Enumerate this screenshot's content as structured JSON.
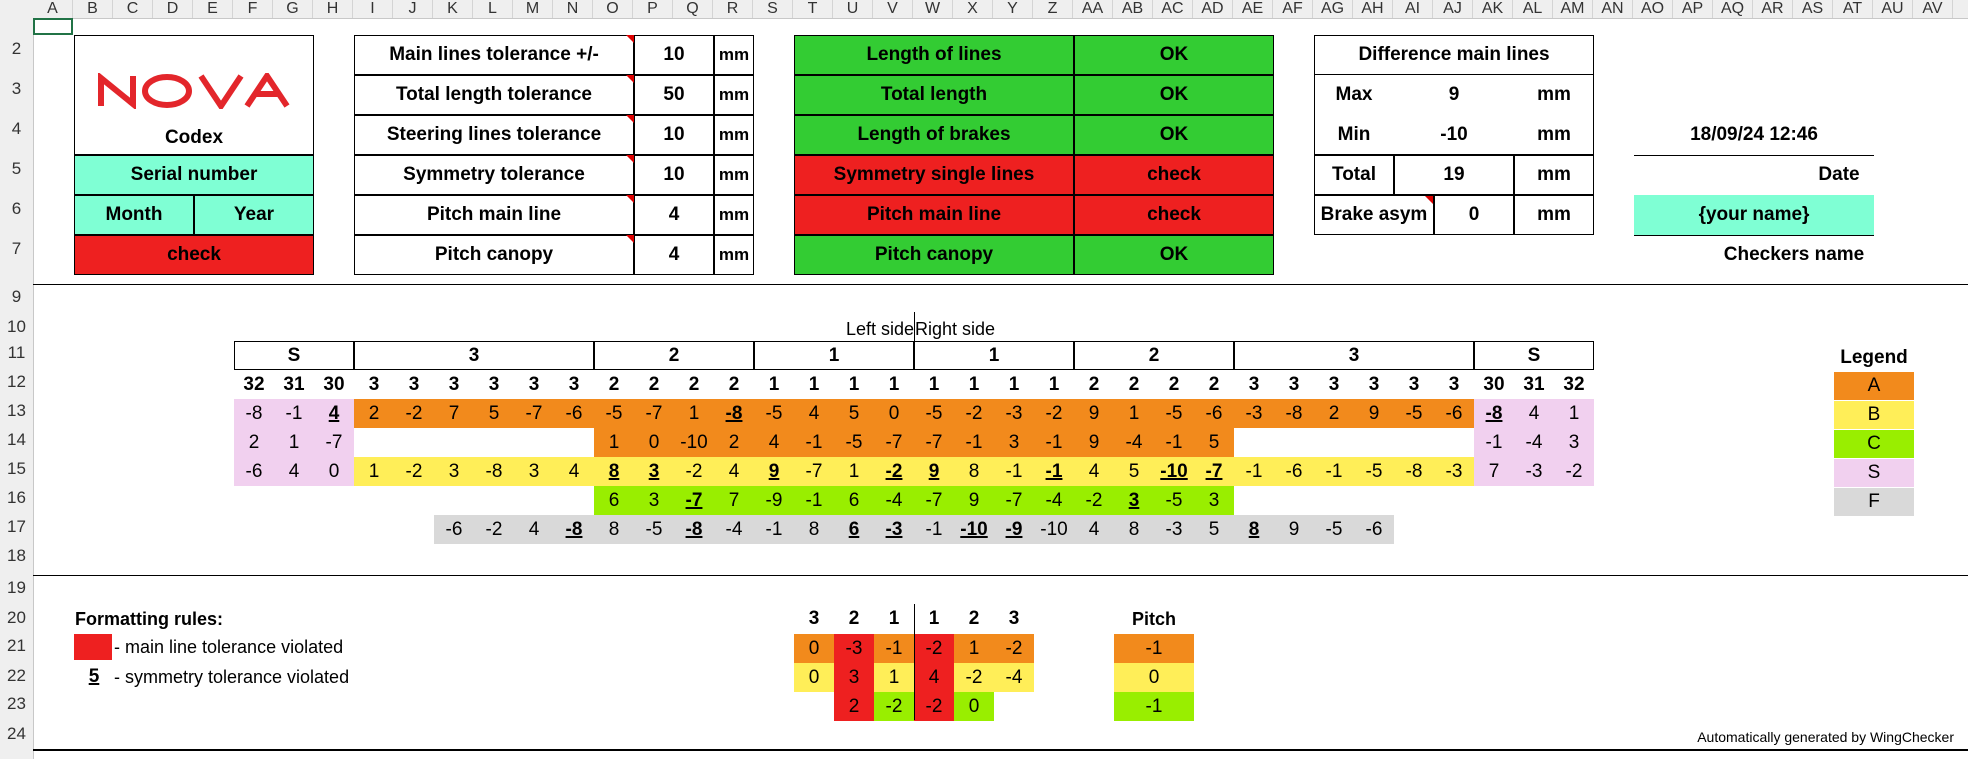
{
  "col_headers": [
    "A",
    "B",
    "C",
    "D",
    "E",
    "F",
    "G",
    "H",
    "I",
    "J",
    "K",
    "L",
    "M",
    "N",
    "O",
    "P",
    "Q",
    "R",
    "S",
    "T",
    "U",
    "V",
    "W",
    "X",
    "Y",
    "Z",
    "AA",
    "AB",
    "AC",
    "AD",
    "AE",
    "AF",
    "AG",
    "AH",
    "AI",
    "AJ",
    "AK",
    "AL",
    "AM",
    "AN",
    "AO",
    "AP",
    "AQ",
    "AR",
    "AS",
    "AT",
    "AU",
    "AV"
  ],
  "row_headers": [
    "2",
    "3",
    "4",
    "5",
    "6",
    "7",
    "9",
    "10",
    "11",
    "12",
    "13",
    "14",
    "15",
    "16",
    "17",
    "18",
    "19",
    "20",
    "21",
    "22",
    "23",
    "24"
  ],
  "logo": {
    "text": "NOVA",
    "color": "#e3262b"
  },
  "codex": "Codex",
  "serial": "Serial number",
  "month": "Month",
  "year": "Year",
  "codex_status": "check",
  "tolerances": [
    {
      "label": "Main lines tolerance +/-",
      "value": "10",
      "unit": "mm"
    },
    {
      "label": "Total length tolerance",
      "value": "50",
      "unit": "mm"
    },
    {
      "label": "Steering lines tolerance",
      "value": "10",
      "unit": "mm"
    },
    {
      "label": "Symmetry tolerance",
      "value": "10",
      "unit": "mm"
    },
    {
      "label": "Pitch main line",
      "value": "4",
      "unit": "mm"
    },
    {
      "label": "Pitch canopy",
      "value": "4",
      "unit": "mm"
    }
  ],
  "checks": [
    {
      "label": "Length of lines",
      "status": "OK",
      "state": "ok"
    },
    {
      "label": "Total length",
      "status": "OK",
      "state": "ok"
    },
    {
      "label": "Length of brakes",
      "status": "OK",
      "state": "ok"
    },
    {
      "label": "Symmetry single lines",
      "status": "check",
      "state": "bad"
    },
    {
      "label": "Pitch main line",
      "status": "check",
      "state": "bad"
    },
    {
      "label": "Pitch canopy",
      "status": "OK",
      "state": "ok"
    }
  ],
  "diff": {
    "title": "Difference main lines",
    "max_label": "Max",
    "max_value": "9",
    "max_unit": "mm",
    "min_label": "Min",
    "min_value": "-10",
    "min_unit": "mm",
    "total_label": "Total",
    "total_value": "19",
    "total_unit": "mm",
    "brake_label": "Brake asym",
    "brake_value": "0",
    "brake_unit": "mm"
  },
  "datetime": "18/09/24  12:46",
  "date_label": "Date",
  "name_input": "{your name}",
  "checker_label": "Checkers name",
  "side_left": "Left side",
  "side_right": "Right side",
  "groups": [
    "S",
    "3",
    "2",
    "1",
    "1",
    "2",
    "3",
    "S"
  ],
  "line_nums": [
    "32",
    "31",
    "30",
    "3",
    "3",
    "3",
    "3",
    "3",
    "3",
    "2",
    "2",
    "2",
    "2",
    "1",
    "1",
    "1",
    "1",
    "1",
    "1",
    "1",
    "1",
    "2",
    "2",
    "2",
    "2",
    "3",
    "3",
    "3",
    "3",
    "3",
    "3",
    "30",
    "31",
    "32"
  ],
  "grid_rows": [
    [
      "-8",
      "-1",
      "4",
      "2",
      "-2",
      "7",
      "5",
      "-7",
      "-6",
      "-5",
      "-7",
      "1",
      "-8",
      "-5",
      "4",
      "5",
      "0",
      "-5",
      "-2",
      "-3",
      "-2",
      "9",
      "1",
      "-5",
      "-6",
      "-3",
      "-8",
      "2",
      "9",
      "-5",
      "-6",
      "-8",
      "4",
      "1"
    ],
    [
      "2",
      "1",
      "-7",
      "",
      "",
      "",
      "",
      "",
      "",
      "1",
      "0",
      "-10",
      "2",
      "4",
      "-1",
      "-5",
      "-7",
      "-7",
      "-1",
      "3",
      "-1",
      "9",
      "-4",
      "-1",
      "5",
      "",
      "",
      "",
      "",
      "",
      "",
      "-1",
      "-4",
      "3"
    ],
    [
      "-6",
      "4",
      "0",
      "1",
      "-2",
      "3",
      "-8",
      "3",
      "4",
      "8",
      "3",
      "-2",
      "4",
      "9",
      "-7",
      "1",
      "-2",
      "9",
      "8",
      "-1",
      "-1",
      "4",
      "5",
      "-10",
      "-7",
      "-1",
      "-6",
      "-1",
      "-5",
      "-8",
      "-3",
      "7",
      "-3",
      "-2"
    ],
    [
      "",
      "",
      "",
      "",
      "",
      "",
      "",
      "",
      "",
      "6",
      "3",
      "-7",
      "7",
      "-9",
      "-1",
      "6",
      "-4",
      "-7",
      "9",
      "-7",
      "-4",
      "-2",
      "3",
      "-5",
      "3",
      "",
      "",
      "",
      "",
      "",
      "",
      "",
      "",
      ""
    ],
    [
      "",
      "",
      "",
      "",
      "",
      "-6",
      "-2",
      "4",
      "-8",
      "8",
      "-5",
      "-8",
      "-4",
      "-1",
      "8",
      "6",
      "-3",
      "-1",
      "-10",
      "-9",
      "-10",
      "4",
      "8",
      "-3",
      "5",
      "8",
      "9",
      "-5",
      "-6",
      "",
      "",
      "",
      "",
      ""
    ]
  ],
  "legend": {
    "title": "Legend",
    "items": [
      "A",
      "B",
      "C",
      "S",
      "F"
    ]
  },
  "rules": {
    "title": "Formatting rules:",
    "rule1": "- main line tolerance violated",
    "rule2_sample": "5",
    "rule2": "- symmetry tolerance violated"
  },
  "mini": {
    "headers": [
      "3",
      "2",
      "1",
      "1",
      "2",
      "3"
    ],
    "rows": [
      [
        "0",
        "-3",
        "-1",
        "-2",
        "1",
        "-2"
      ],
      [
        "0",
        "3",
        "1",
        "4",
        "-2",
        "-4"
      ],
      [
        "",
        "2",
        "-2",
        "-2",
        "0",
        ""
      ]
    ]
  },
  "pitch": {
    "title": "Pitch",
    "values": [
      "-1",
      "0",
      "-1"
    ]
  },
  "footer": "Automatically generated by WingChecker",
  "colors": {
    "ok": "#33cc33",
    "bad": "#ee2020",
    "mint": "#7fffd4",
    "A": "#f28a1c",
    "B": "#ffee58",
    "C": "#99ee00",
    "S": "#f1d0ef",
    "F": "#d9d9d9"
  }
}
